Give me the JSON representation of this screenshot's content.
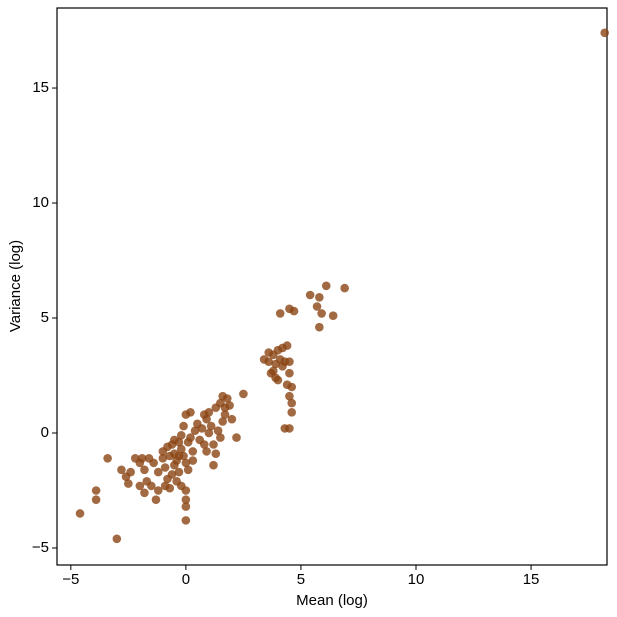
{
  "chart_data": {
    "type": "scatter",
    "x_label": "Mean (log)",
    "y_label": "Variance (log)",
    "color": "#8b4513",
    "xlim": [
      -5.6,
      18.3
    ],
    "ylim": [
      -5.74,
      18.48
    ],
    "xticks": [
      {
        "value": -5,
        "label": "−5"
      },
      0,
      5,
      10,
      15
    ],
    "yticks": [
      {
        "value": -5,
        "label": "−5"
      },
      0,
      5,
      10,
      15
    ],
    "x": [
      18.2,
      5.4,
      5.8,
      6.1,
      6.9,
      5.7,
      5.9,
      6.4,
      5.8,
      4.5,
      4.7,
      4.1,
      3.4,
      3.6,
      3.8,
      4.0,
      4.2,
      4.4,
      4.1,
      4.3,
      4.5,
      3.9,
      4.2,
      3.7,
      3.9,
      4.0,
      4.5,
      4.4,
      4.6,
      4.5,
      4.6,
      4.6,
      4.3,
      4.5,
      3.8,
      3.6,
      -4.6,
      -3.9,
      -3.9,
      -3.0,
      -3.4,
      -2.8,
      -2.6,
      -2.4,
      -2.2,
      -2.0,
      -1.9,
      -1.8,
      -1.7,
      -1.8,
      -1.5,
      -1.3,
      -1.2,
      -1.4,
      -1.2,
      -1.0,
      -0.9,
      -0.8,
      -0.7,
      -0.6,
      -0.5,
      -0.4,
      -0.3,
      -0.2,
      -0.1,
      0,
      -0.3,
      -0.6,
      -0.4,
      0.1,
      0.2,
      0,
      0.2,
      0.4,
      0.6,
      0.7,
      0.8,
      0.9,
      1.0,
      1.2,
      1.3,
      1.2,
      1.1,
      1.4,
      1.5,
      1.6,
      1.7,
      1.8,
      1.7,
      1.9,
      2.0,
      1.6,
      2.5,
      2.2,
      1.5,
      1.3,
      0.8,
      0.5,
      0.3,
      0,
      0,
      0,
      0,
      -0.2,
      -0.5,
      -0.7,
      -0.8,
      -1.0,
      -0.1,
      0.1,
      -0.3,
      -0.5,
      -0.9,
      -1.6,
      -2.5,
      -2.0,
      -0.2,
      0.3,
      0.9,
      1.0
    ],
    "y": [
      17.4,
      6.0,
      5.9,
      6.4,
      6.3,
      5.5,
      5.2,
      5.1,
      4.6,
      5.4,
      5.3,
      5.2,
      3.2,
      3.1,
      3.4,
      3.6,
      3.7,
      3.8,
      3.2,
      3.1,
      3.1,
      3.0,
      2.9,
      2.6,
      2.4,
      2.3,
      2.6,
      2.1,
      2.0,
      1.6,
      1.3,
      0.9,
      0.2,
      0.2,
      2.7,
      3.5,
      -3.5,
      -2.5,
      -2.9,
      -4.6,
      -1.1,
      -1.6,
      -1.9,
      -1.7,
      -1.1,
      -1.3,
      -1.1,
      -1.6,
      -2.1,
      -2.6,
      -2.3,
      -2.9,
      -2.5,
      -1.3,
      -1.7,
      -1.1,
      -1.5,
      -2.0,
      -2.4,
      -0.5,
      -0.9,
      -1.2,
      -0.4,
      -0.7,
      -1.0,
      -1.3,
      -1.7,
      -1.8,
      -2.1,
      -0.4,
      -0.2,
      0.8,
      0.9,
      0.1,
      -0.3,
      0.2,
      -0.5,
      0.6,
      0,
      -0.5,
      -0.9,
      -1.4,
      0.3,
      0.1,
      -0.2,
      0.5,
      1.1,
      1.5,
      0.8,
      1.2,
      0.6,
      1.6,
      1.7,
      -0.2,
      1.3,
      1.1,
      0.8,
      0.4,
      -0.8,
      -2.5,
      -2.9,
      -3.2,
      -3.8,
      -2.3,
      -1.4,
      -1.0,
      -0.6,
      -0.8,
      0.3,
      -1.6,
      -1.0,
      -0.3,
      -2.3,
      -1.1,
      -2.2,
      -2.3,
      -0.1,
      -1.2,
      -0.8,
      0.9
    ]
  }
}
